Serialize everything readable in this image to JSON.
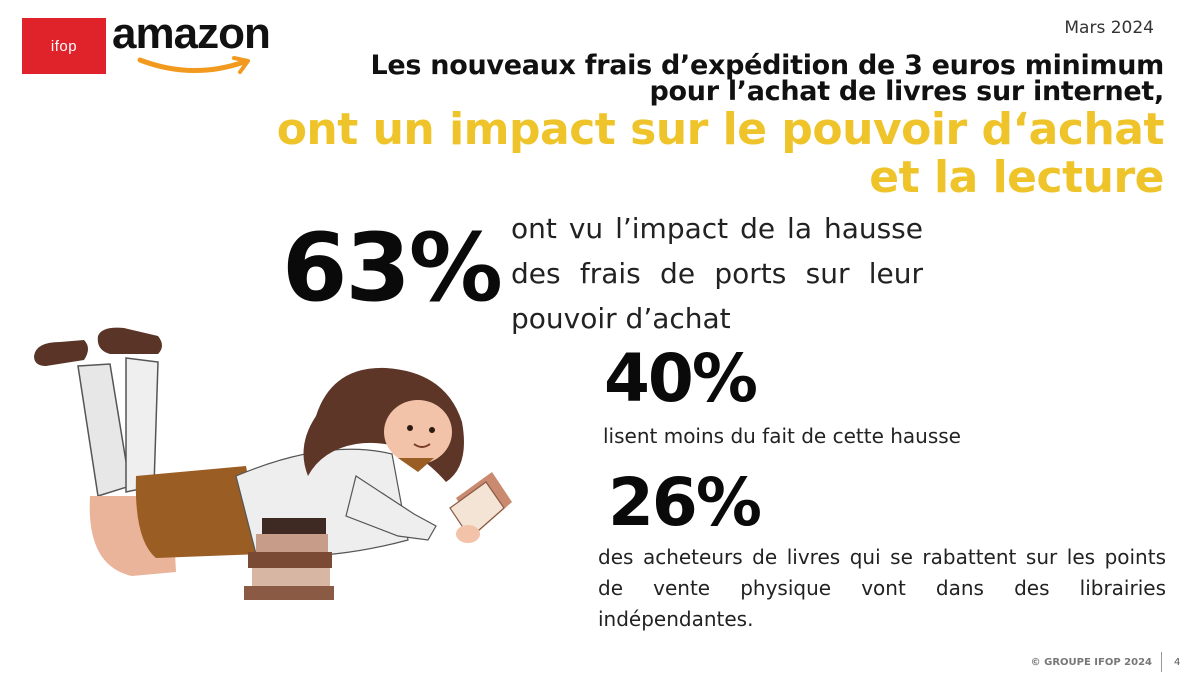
{
  "logos": {
    "ifop": "ifop",
    "amazon": "amazon"
  },
  "date": "Mars 2024",
  "title": {
    "line1": "Les nouveaux frais d’expédition de 3 euros minimum",
    "line2": "pour l’achat de livres sur internet,",
    "line3": "ont un impact sur le pouvoir d‘achat",
    "line4": "et la lecture"
  },
  "stats": [
    {
      "value": "63%",
      "text": "ont vu l’impact de la hausse des frais de ports sur leur pouvoir d’achat"
    },
    {
      "value": "40%",
      "text": "lisent moins du fait de cette hausse"
    },
    {
      "value": "26%",
      "text": "des acheteurs de livres qui se rabattent sur les points de vente physique vont dans des librairies indépendantes."
    }
  ],
  "footer": {
    "copyright": "© GROUPE IFOP 2024",
    "page": "4"
  },
  "colors": {
    "accent_yellow": "#efc42a",
    "ifop_red": "#e0222a",
    "amazon_orange": "#f29a1f"
  },
  "illustration": "girl-reading-book-lying-down"
}
